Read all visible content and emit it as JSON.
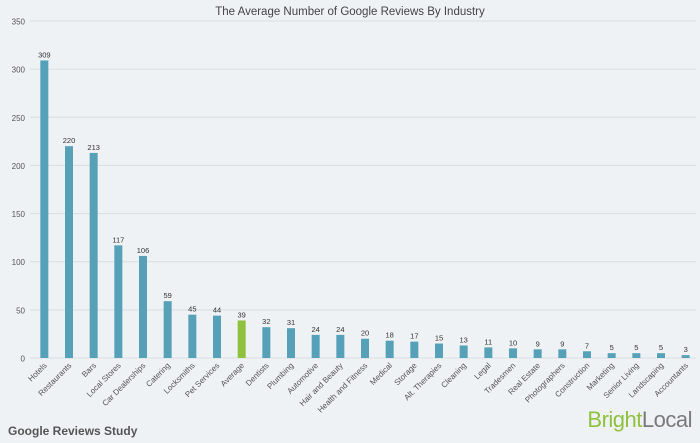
{
  "chart_data": {
    "type": "bar",
    "title": "The Average Number of Google Reviews By Industry",
    "xlabel": "",
    "ylabel": "",
    "ylim": [
      0,
      350
    ],
    "yticks": [
      0,
      50,
      100,
      150,
      200,
      250,
      300,
      350
    ],
    "grid": true,
    "categories": [
      "Hotels",
      "Restaurants",
      "Bars",
      "Local Stores",
      "Car Dealerships",
      "Catering",
      "Locksmiths",
      "Pet Services",
      "Average",
      "Dentists",
      "Plumbing",
      "Automotive",
      "Hair and Beauty",
      "Health and Fitness",
      "Medical",
      "Storage",
      "Alt. Therapies",
      "Cleaning",
      "Legal",
      "Tradesmen",
      "Real Estate",
      "Photographers",
      "Construction",
      "Marketing",
      "Senior Living",
      "Landscaping",
      "Accountants"
    ],
    "values": [
      309,
      220,
      213,
      117,
      106,
      59,
      45,
      44,
      39,
      32,
      31,
      24,
      24,
      20,
      18,
      17,
      15,
      13,
      11,
      10,
      9,
      9,
      7,
      5,
      5,
      5,
      3
    ],
    "highlight_category": "Average",
    "colors": {
      "bar": "#56a0b8",
      "highlight": "#8fc13e",
      "grid": "#d7dee2",
      "background": "#eef2f4"
    }
  },
  "footer": {
    "study_label": "Google Reviews Study",
    "brand_part1": "Bright",
    "brand_part2": "Local"
  }
}
